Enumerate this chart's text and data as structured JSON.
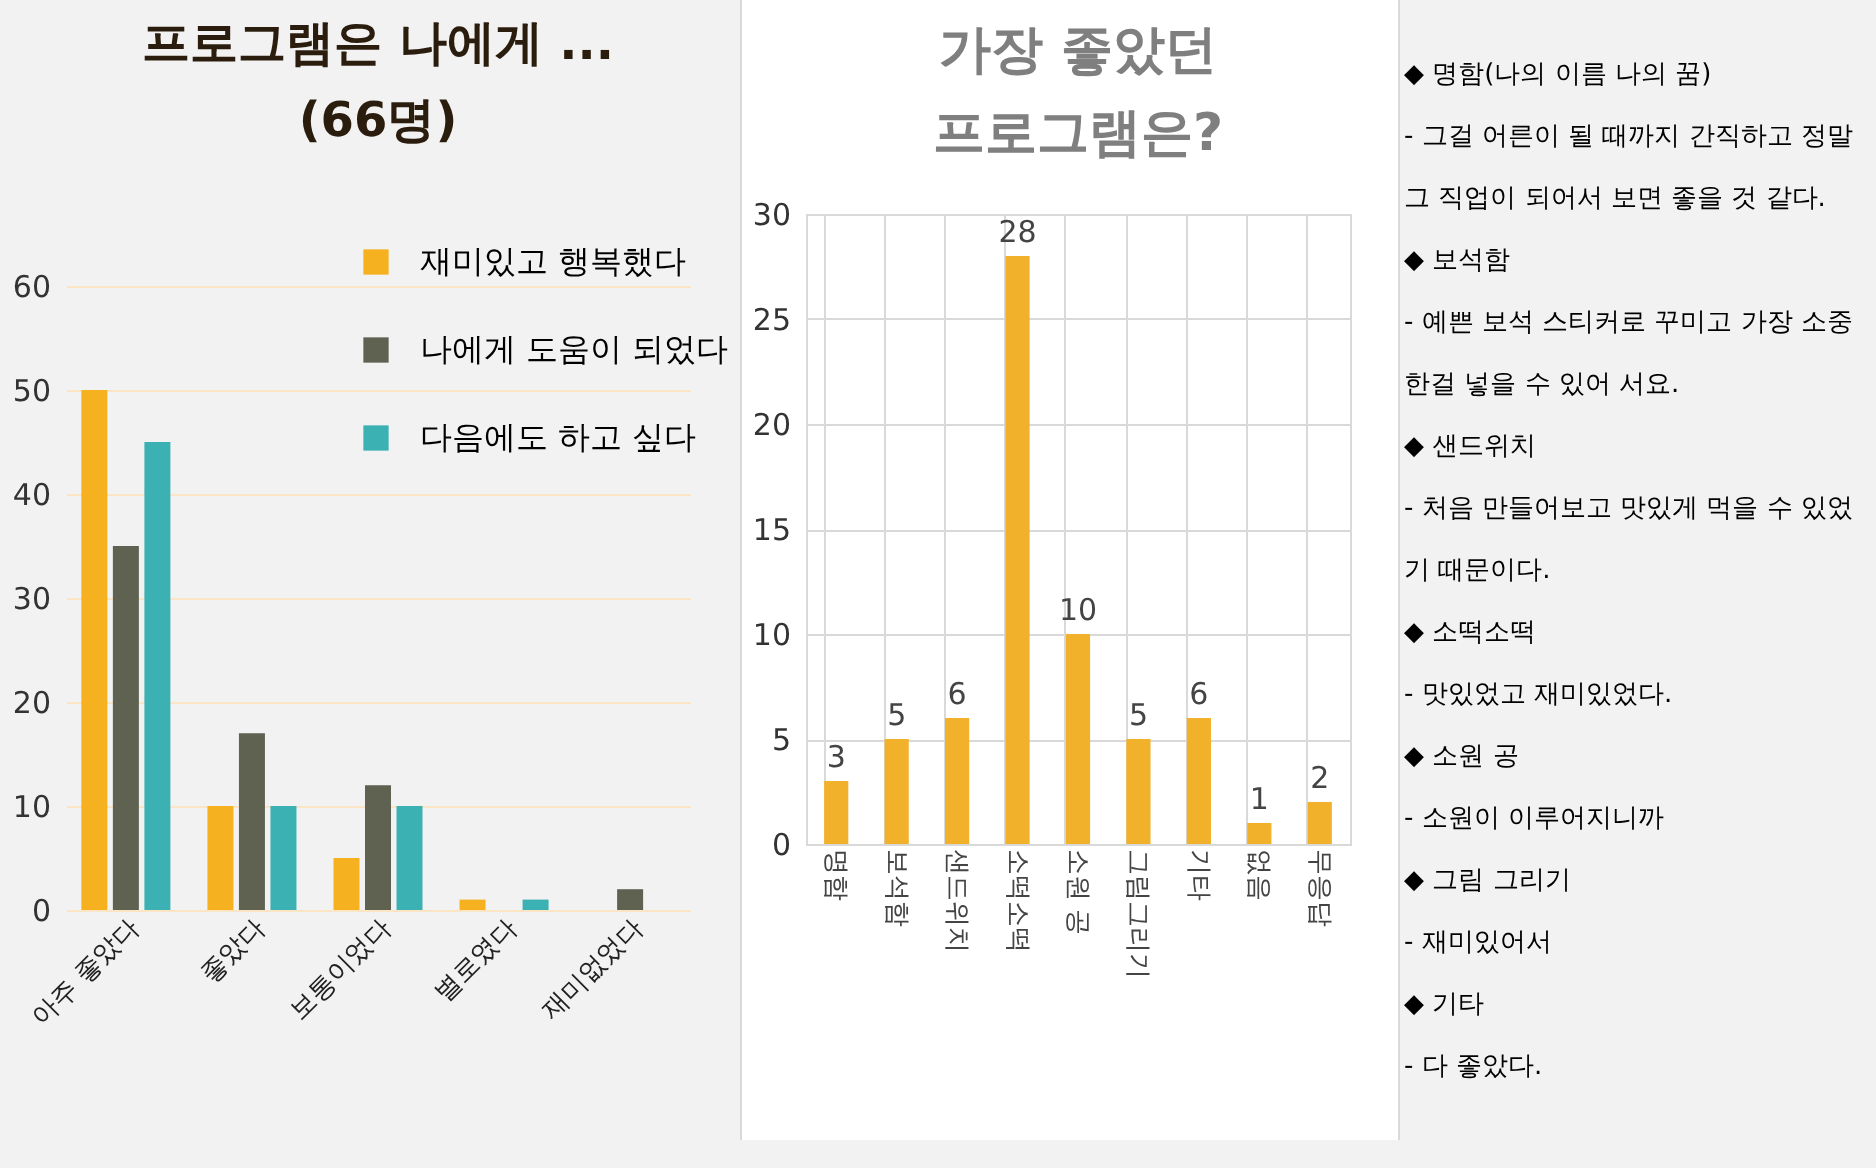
{
  "chart_data": [
    {
      "type": "bar",
      "title": "프로그램은 나에게 ...\n(66명)",
      "categories": [
        "아주 좋았다",
        "좋았다",
        "보통이었다",
        "별로였다",
        "재미없었다"
      ],
      "series": [
        {
          "name": "재미있고 행복했다",
          "color": "#f5b120",
          "values": [
            50,
            10,
            5,
            1,
            0
          ]
        },
        {
          "name": "나에게 도움이 되었다",
          "color": "#5f6151",
          "values": [
            35,
            17,
            12,
            0,
            2
          ]
        },
        {
          "name": "다음에도 하고 싶다",
          "color": "#3cb1b4",
          "values": [
            45,
            10,
            10,
            1,
            0
          ]
        }
      ],
      "ylim": [
        0,
        60
      ],
      "yticks": [
        0,
        10,
        20,
        30,
        40,
        50,
        60
      ],
      "grid": "y",
      "legend": "top right"
    },
    {
      "type": "bar",
      "title": "가장 좋았던\n프로그램은?",
      "categories": [
        "명함",
        "보석함",
        "샌드위치",
        "소떡소떡",
        "소원 공",
        "그림그리기",
        "기타",
        "없음",
        "무응답"
      ],
      "values": [
        3,
        5,
        6,
        28,
        10,
        5,
        6,
        1,
        2
      ],
      "color": "#f2b12b",
      "ylim": [
        0,
        30
      ],
      "yticks": [
        0,
        5,
        10,
        15,
        20,
        25,
        30
      ],
      "grid": true,
      "data_labels": true
    },
    {
      "type": "other",
      "annotations": [
        "◆ 명함(나의 이름 나의 꿈)",
        "- 그걸 어른이 될 때까지 간직하고 정말 그 직업이 되어서 보면 좋을 것 같다.",
        "◆ 보석함",
        "- 예쁜 보석 스티커로 꾸미고 가장 소중한걸 넣을 수 있어 서요.",
        "◆ 샌드위치",
        "- 처음 만들어보고 맛있게 먹을 수 있었기 때문이다.",
        "◆ 소떡소떡",
        "- 맛있었고 재미있었다.",
        "◆ 소원 공",
        "- 소원이 이루어지니까",
        "◆ 그림 그리기",
        "- 재미있어서",
        "◆ 기타",
        "- 다 좋았다."
      ]
    }
  ]
}
